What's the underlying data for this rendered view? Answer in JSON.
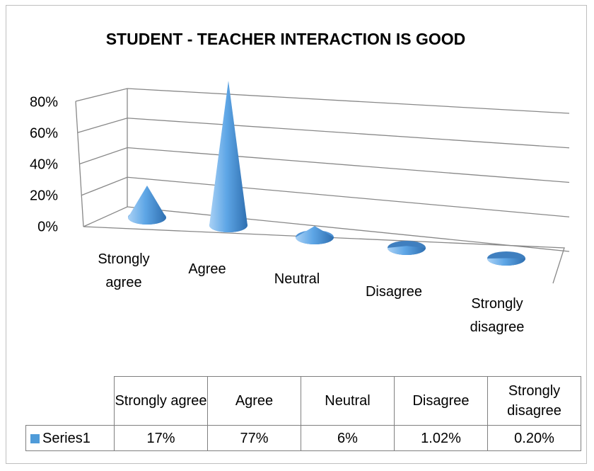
{
  "chart_data": {
    "type": "bar3d-cone",
    "title": "STUDENT - TEACHER INTERACTION IS GOOD",
    "categories": [
      "Strongly agree",
      "Agree",
      "Neutral",
      "Disagree",
      "Strongly disagree"
    ],
    "series": [
      {
        "name": "Series1",
        "color": "#4f9bd9",
        "values": [
          17,
          77,
          6,
          1.02,
          0.2
        ],
        "value_labels": [
          "17%",
          "77%",
          "6%",
          "1.02%",
          "0.20%"
        ]
      }
    ],
    "ylim": [
      0,
      80
    ],
    "yticks": [
      {
        "value": 0,
        "label": "0%"
      },
      {
        "value": 20,
        "label": "20%"
      },
      {
        "value": 40,
        "label": "40%"
      },
      {
        "value": 60,
        "label": "60%"
      },
      {
        "value": 80,
        "label": "80%"
      }
    ],
    "grid": true,
    "data_table": true
  }
}
